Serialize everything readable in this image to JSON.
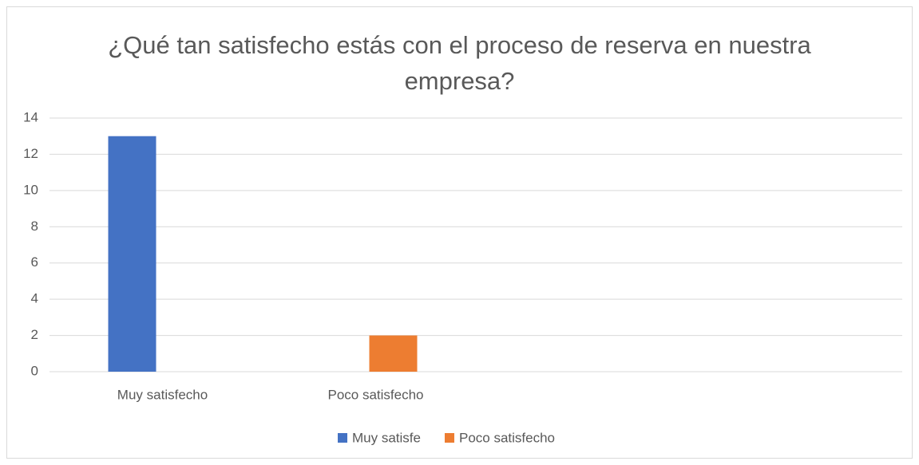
{
  "chart_data": {
    "type": "bar",
    "title": "¿Qué tan satisfecho estás con el proceso de reserva en nuestra empresa?",
    "categories": [
      "Muy satisfecho",
      "Poco satisfecho",
      null,
      null
    ],
    "series": [
      {
        "name": "Muy satisfe",
        "color": "#4472c4",
        "values": [
          13,
          null,
          null,
          null
        ]
      },
      {
        "name": "Poco satisfecho",
        "color": "#ed7d31",
        "values": [
          null,
          2,
          null,
          null
        ]
      }
    ],
    "ylim": [
      0,
      14
    ],
    "yticks": [
      0,
      2,
      4,
      6,
      8,
      10,
      12,
      14
    ],
    "grid": true,
    "legend": "bottom"
  }
}
